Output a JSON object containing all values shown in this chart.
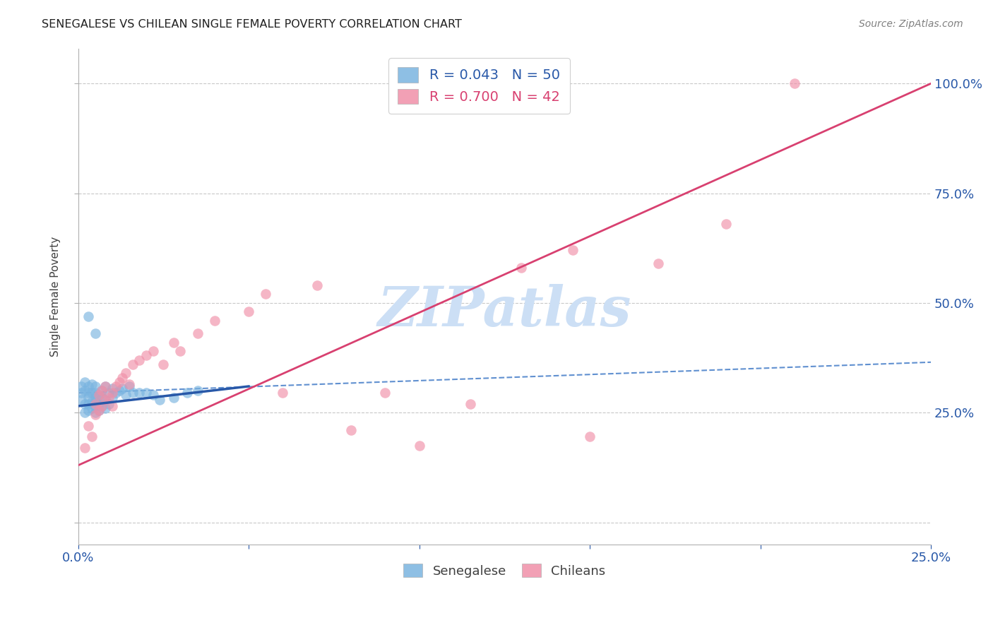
{
  "title": "SENEGALESE VS CHILEAN SINGLE FEMALE POVERTY CORRELATION CHART",
  "source": "Source: ZipAtlas.com",
  "ylabel": "Single Female Poverty",
  "ytick_labels": [
    "",
    "25.0%",
    "50.0%",
    "75.0%",
    "100.0%"
  ],
  "legend_entries": [
    {
      "label": "R = 0.043   N = 50",
      "color": "#a8c8e8"
    },
    {
      "label": "R = 0.700   N = 42",
      "color": "#f4a0b4"
    }
  ],
  "legend_labels_bottom": [
    "Senegalese",
    "Chileans"
  ],
  "senegalese_color": "#7ab4e0",
  "chilean_color": "#f090a8",
  "senegalese_line_color": "#2858a8",
  "chilean_line_color": "#d84070",
  "dashed_line_color": "#6090d0",
  "watermark_text": "ZIPatlas",
  "watermark_color": "#ccdff5",
  "xlim": [
    0.0,
    0.25
  ],
  "ylim": [
    -0.05,
    1.08
  ],
  "ytick_positions": [
    0.0,
    0.25,
    0.5,
    0.75,
    1.0
  ],
  "xtick_positions": [
    0.0,
    0.05,
    0.1,
    0.15,
    0.2,
    0.25
  ],
  "senegalese_R": 0.043,
  "chilean_R": 0.7,
  "sen_line_x0": 0.0,
  "sen_line_y0": 0.265,
  "sen_line_x1": 0.05,
  "sen_line_y1": 0.31,
  "chi_line_x0": 0.0,
  "chi_line_y0": 0.13,
  "chi_line_x1": 0.25,
  "chi_line_y1": 1.0,
  "dash_line_x0": 0.0,
  "dash_line_y0": 0.295,
  "dash_line_x1": 0.25,
  "dash_line_y1": 0.365,
  "hline_y": 0.295,
  "senegalese_x": [
    0.001,
    0.001,
    0.001,
    0.002,
    0.002,
    0.002,
    0.002,
    0.003,
    0.003,
    0.003,
    0.003,
    0.003,
    0.004,
    0.004,
    0.004,
    0.004,
    0.005,
    0.005,
    0.005,
    0.005,
    0.005,
    0.005,
    0.006,
    0.006,
    0.006,
    0.007,
    0.007,
    0.007,
    0.008,
    0.008,
    0.008,
    0.009,
    0.009,
    0.01,
    0.01,
    0.011,
    0.012,
    0.013,
    0.014,
    0.015,
    0.016,
    0.018,
    0.02,
    0.022,
    0.024,
    0.028,
    0.032,
    0.035,
    0.005,
    0.003
  ],
  "senegalese_y": [
    0.28,
    0.295,
    0.31,
    0.25,
    0.27,
    0.3,
    0.32,
    0.255,
    0.27,
    0.285,
    0.295,
    0.31,
    0.26,
    0.275,
    0.295,
    0.315,
    0.25,
    0.265,
    0.275,
    0.285,
    0.295,
    0.31,
    0.255,
    0.27,
    0.29,
    0.265,
    0.285,
    0.3,
    0.26,
    0.28,
    0.31,
    0.27,
    0.295,
    0.285,
    0.305,
    0.295,
    0.3,
    0.305,
    0.29,
    0.31,
    0.295,
    0.295,
    0.295,
    0.29,
    0.28,
    0.285,
    0.295,
    0.3,
    0.43,
    0.47
  ],
  "chilean_x": [
    0.002,
    0.003,
    0.004,
    0.005,
    0.005,
    0.006,
    0.006,
    0.007,
    0.007,
    0.008,
    0.008,
    0.009,
    0.01,
    0.01,
    0.011,
    0.012,
    0.013,
    0.014,
    0.015,
    0.016,
    0.018,
    0.02,
    0.022,
    0.025,
    0.028,
    0.03,
    0.035,
    0.04,
    0.05,
    0.055,
    0.06,
    0.07,
    0.08,
    0.09,
    0.1,
    0.115,
    0.13,
    0.15,
    0.17,
    0.19,
    0.21,
    0.145
  ],
  "chilean_y": [
    0.17,
    0.22,
    0.195,
    0.245,
    0.27,
    0.255,
    0.29,
    0.265,
    0.3,
    0.28,
    0.31,
    0.285,
    0.265,
    0.295,
    0.31,
    0.32,
    0.33,
    0.34,
    0.315,
    0.36,
    0.37,
    0.38,
    0.39,
    0.36,
    0.41,
    0.39,
    0.43,
    0.46,
    0.48,
    0.52,
    0.295,
    0.54,
    0.21,
    0.295,
    0.175,
    0.27,
    0.58,
    0.195,
    0.59,
    0.68,
    1.0,
    0.62
  ]
}
